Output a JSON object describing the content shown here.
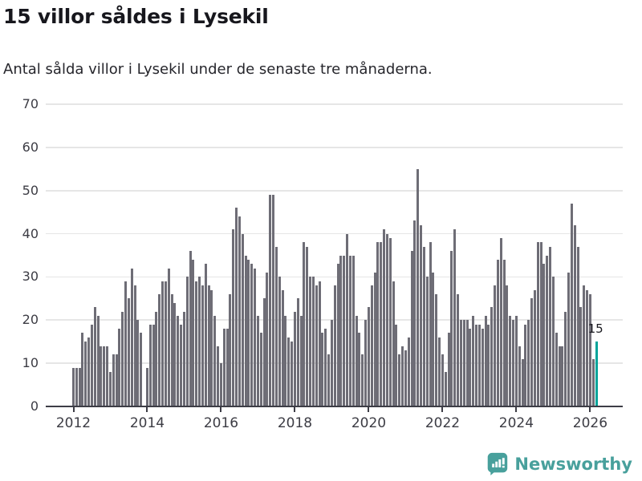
{
  "header": {
    "title": "15 villor såldes i Lysekil",
    "subtitle": "Antal sålda villor i Lysekil under de senaste tre månaderna."
  },
  "chart_data": {
    "type": "bar",
    "title": "15 villor såldes i Lysekil",
    "subtitle": "Antal sålda villor i Lysekil under de senaste tre månaderna.",
    "x_unit": "month",
    "x_start": "2012-01",
    "xlabel": "",
    "ylabel": "",
    "ylim": [
      0,
      70
    ],
    "yticks": [
      0,
      10,
      20,
      30,
      40,
      50,
      60,
      70
    ],
    "xtick_years": [
      "2012",
      "2014",
      "2016",
      "2018",
      "2020",
      "2022",
      "2024",
      "2026"
    ],
    "grid": true,
    "legend": false,
    "bar_color": "#6e6d76",
    "values": [
      9,
      9,
      9,
      17,
      15,
      16,
      19,
      23,
      21,
      14,
      14,
      14,
      8,
      12,
      12,
      18,
      22,
      29,
      25,
      32,
      28,
      20,
      17,
      0,
      9,
      19,
      19,
      22,
      26,
      29,
      29,
      32,
      26,
      24,
      21,
      19,
      22,
      30,
      36,
      34,
      29,
      30,
      28,
      33,
      28,
      27,
      21,
      14,
      10,
      18,
      18,
      26,
      41,
      46,
      44,
      40,
      35,
      34,
      33,
      32,
      21,
      17,
      25,
      31,
      49,
      49,
      37,
      30,
      27,
      21,
      16,
      15,
      22,
      25,
      21,
      38,
      37,
      30,
      30,
      28,
      29,
      17,
      18,
      12,
      20,
      28,
      33,
      35,
      35,
      40,
      35,
      35,
      21,
      17,
      12,
      20,
      23,
      28,
      31,
      38,
      38,
      41,
      40,
      39,
      29,
      19,
      12,
      14,
      13,
      16,
      36,
      43,
      55,
      42,
      37,
      30,
      38,
      31,
      26,
      16,
      12,
      8,
      17,
      36,
      41,
      26,
      20,
      20,
      20,
      18,
      21,
      19,
      19,
      18,
      21,
      19,
      23,
      28,
      34,
      39,
      34,
      28,
      21,
      20,
      21,
      14,
      11,
      19,
      20,
      25,
      27,
      38,
      38,
      33,
      35,
      37,
      30,
      17,
      14,
      14,
      22,
      31,
      47,
      42,
      37,
      23,
      28,
      27,
      26,
      11,
      15
    ],
    "highlight_last_bar": {
      "value": 15,
      "label": "15",
      "color": "#00a49a"
    }
  },
  "footer": {
    "brand": "Newsworthy",
    "brand_color": "#48a09c"
  }
}
